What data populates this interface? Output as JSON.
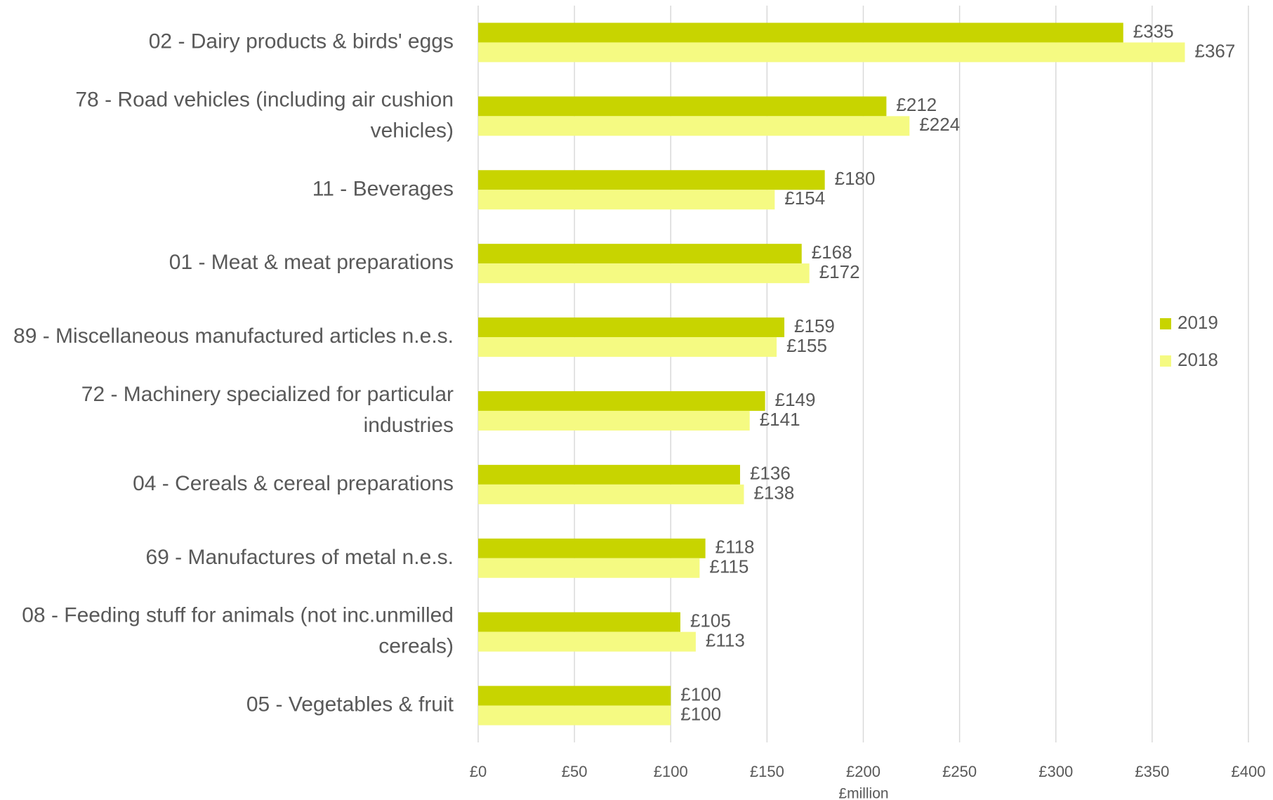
{
  "chart_data": {
    "type": "bar",
    "orientation": "horizontal",
    "x_axis_label": "£million",
    "categories": [
      "02 - Dairy products & birds' eggs",
      "78 - Road vehicles (including air cushion vehicles)",
      "11 - Beverages",
      "01 - Meat & meat preparations",
      "89 - Miscellaneous manufactured articles n.e.s.",
      "72 - Machinery specialized for particular industries",
      "04 - Cereals & cereal preparations",
      "69 - Manufactures of metal n.e.s.",
      "08 - Feeding stuff for animals (not inc.unmilled cereals)",
      "05 - Vegetables & fruit"
    ],
    "series": [
      {
        "name": "2019",
        "color": "#c8d400",
        "values": [
          335,
          212,
          180,
          168,
          159,
          149,
          136,
          118,
          105,
          100
        ],
        "value_labels": [
          "£335",
          "£212",
          "£180",
          "£168",
          "£159",
          "£149",
          "£136",
          "£118",
          "£105",
          "£100"
        ]
      },
      {
        "name": "2018",
        "color": "#f5fa82",
        "values": [
          367,
          224,
          154,
          172,
          155,
          141,
          138,
          115,
          113,
          100
        ],
        "value_labels": [
          "£367",
          "£224",
          "£154",
          "£172",
          "£155",
          "£141",
          "£138",
          "£115",
          "£113",
          "£100"
        ]
      }
    ],
    "xlim": [
      0,
      400
    ],
    "xticks": [
      {
        "value": 0,
        "label": "£0"
      },
      {
        "value": 50,
        "label": "£50"
      },
      {
        "value": 100,
        "label": "£100"
      },
      {
        "value": 150,
        "label": "£150"
      },
      {
        "value": 200,
        "label": "£200"
      },
      {
        "value": 250,
        "label": "£250"
      },
      {
        "value": 300,
        "label": "£300"
      },
      {
        "value": 350,
        "label": "£350"
      },
      {
        "value": 400,
        "label": "£400"
      }
    ],
    "grid": true,
    "legend": "right"
  }
}
